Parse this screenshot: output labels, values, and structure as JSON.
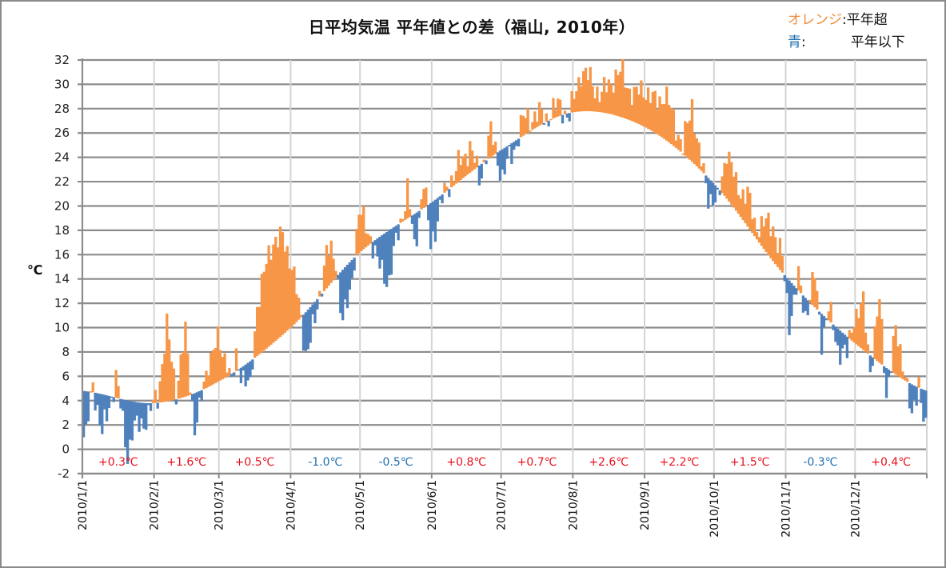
{
  "chart_data": {
    "type": "bar",
    "title": "日平均気温 平年値との差（福山, 2010年）",
    "ylabel": "℃",
    "xlabel": "",
    "ylim": [
      -2,
      32
    ],
    "y_ticks": [
      "32",
      "30",
      "28",
      "26",
      "24",
      "22",
      "20",
      "18",
      "16",
      "14",
      "12",
      "10",
      "8",
      "6",
      "4",
      "2",
      "0",
      "-2"
    ],
    "x_tick_labels": [
      "2010/1/1",
      "2010/2/1",
      "2010/3/1",
      "2010/4/1",
      "2010/5/1",
      "2010/6/1",
      "2010/7/1",
      "2010/8/1",
      "2010/9/1",
      "2010/10/1",
      "2010/11/1",
      "2010/12/1"
    ],
    "legend": {
      "placement": "top-right",
      "items": [
        {
          "key": "オレンジ",
          "sep": ":",
          "desc": "平年超",
          "color": "#f79646"
        },
        {
          "key": "青",
          "sep": ":",
          "desc": "平年以下",
          "color": "#4f81bd"
        }
      ]
    },
    "colors": {
      "above": "#f79646",
      "below": "#4f81bd",
      "anomaly_positive": "#e8101c",
      "anomaly_negative": "#1f6fb0"
    },
    "monthly_anomalies": [
      "+0.3℃",
      "+1.6℃",
      "+0.5℃",
      "-1.0℃",
      "-0.5℃",
      "+0.8℃",
      "+0.7℃",
      "+2.6℃",
      "+2.2℃",
      "+1.5℃",
      "-0.3℃",
      "+0.4℃"
    ],
    "normal_curve_monthly_start": [
      4.8,
      3.8,
      5.6,
      10.0,
      16.2,
      20.3,
      24.6,
      27.7,
      26.5,
      21.8,
      14.2,
      8.7,
      4.8
    ],
    "daily_deviation_events": [
      {
        "day": 1,
        "dev": -3.8
      },
      {
        "day": 4,
        "dev": 0.9
      },
      {
        "day": 8,
        "dev": -3.4
      },
      {
        "day": 14,
        "dev": 1.7
      },
      {
        "day": 19,
        "dev": -4.4
      },
      {
        "day": 21,
        "dev": -2.5
      },
      {
        "day": 28,
        "dev": -1.0
      },
      {
        "day": 32,
        "dev": 0.6
      },
      {
        "day": 36,
        "dev": 6.0
      },
      {
        "day": 40,
        "dev": 0.8
      },
      {
        "day": 44,
        "dev": 5.1
      },
      {
        "day": 48,
        "dev": -2.7
      },
      {
        "day": 50,
        "dev": -1.8
      },
      {
        "day": 54,
        "dev": 2.3
      },
      {
        "day": 58,
        "dev": 3.2
      },
      {
        "day": 62,
        "dev": 1.5
      },
      {
        "day": 64,
        "dev": -1.1
      },
      {
        "day": 66,
        "dev": 1.0
      },
      {
        "day": 72,
        "dev": -2.5
      },
      {
        "day": 75,
        "dev": 4.4
      },
      {
        "day": 78,
        "dev": 6.2
      },
      {
        "day": 82,
        "dev": 8.6
      },
      {
        "day": 86,
        "dev": 7.8
      },
      {
        "day": 90,
        "dev": 5.3
      },
      {
        "day": 96,
        "dev": -3.2
      },
      {
        "day": 100,
        "dev": -1.8
      },
      {
        "day": 105,
        "dev": 3.1
      },
      {
        "day": 109,
        "dev": 1.4
      },
      {
        "day": 112,
        "dev": -4.3
      },
      {
        "day": 115,
        "dev": -2.8
      },
      {
        "day": 119,
        "dev": 3.3
      },
      {
        "day": 124,
        "dev": 0.7
      },
      {
        "day": 127,
        "dev": -2.1
      },
      {
        "day": 132,
        "dev": -4.1
      },
      {
        "day": 136,
        "dev": -0.6
      },
      {
        "day": 140,
        "dev": 2.3
      },
      {
        "day": 143,
        "dev": -2.8
      },
      {
        "day": 147,
        "dev": 2.1
      },
      {
        "day": 150,
        "dev": -3.4
      },
      {
        "day": 155,
        "dev": -0.5
      },
      {
        "day": 159,
        "dev": 0.8
      },
      {
        "day": 164,
        "dev": 1.6
      },
      {
        "day": 167,
        "dev": 2.3
      },
      {
        "day": 171,
        "dev": -1.2
      },
      {
        "day": 176,
        "dev": 2.0
      },
      {
        "day": 181,
        "dev": -2.2
      },
      {
        "day": 186,
        "dev": -0.6
      },
      {
        "day": 190,
        "dev": 1.3
      },
      {
        "day": 195,
        "dev": 1.1
      },
      {
        "day": 200,
        "dev": 0.4
      },
      {
        "day": 206,
        "dev": 0.9
      },
      {
        "day": 210,
        "dev": -0.4
      },
      {
        "day": 215,
        "dev": 3.4
      },
      {
        "day": 219,
        "dev": 2.5
      },
      {
        "day": 224,
        "dev": 1.4
      },
      {
        "day": 229,
        "dev": 3.1
      },
      {
        "day": 233,
        "dev": 3.6
      },
      {
        "day": 238,
        "dev": 2.0
      },
      {
        "day": 242,
        "dev": 3.3
      },
      {
        "day": 246,
        "dev": 2.4
      },
      {
        "day": 251,
        "dev": 3.6
      },
      {
        "day": 255,
        "dev": 2.4
      },
      {
        "day": 259,
        "dev": 0.4
      },
      {
        "day": 263,
        "dev": 4.9
      },
      {
        "day": 266,
        "dev": 1.2
      },
      {
        "day": 270,
        "dev": -1.3
      },
      {
        "day": 274,
        "dev": -1.5
      },
      {
        "day": 278,
        "dev": 4.2
      },
      {
        "day": 282,
        "dev": 2.0
      },
      {
        "day": 287,
        "dev": 2.6
      },
      {
        "day": 290,
        "dev": 1.0
      },
      {
        "day": 294,
        "dev": 2.0
      },
      {
        "day": 298,
        "dev": 3.0
      },
      {
        "day": 302,
        "dev": 1.0
      },
      {
        "day": 305,
        "dev": -3.3
      },
      {
        "day": 309,
        "dev": 0.9
      },
      {
        "day": 312,
        "dev": -1.3
      },
      {
        "day": 316,
        "dev": 2.5
      },
      {
        "day": 319,
        "dev": -2.0
      },
      {
        "day": 322,
        "dev": 0.9
      },
      {
        "day": 326,
        "dev": -1.5
      },
      {
        "day": 330,
        "dev": -1.6
      },
      {
        "day": 333,
        "dev": 2.3
      },
      {
        "day": 337,
        "dev": 3.6
      },
      {
        "day": 340,
        "dev": -1.0
      },
      {
        "day": 344,
        "dev": 5.0
      },
      {
        "day": 347,
        "dev": -2.0
      },
      {
        "day": 351,
        "dev": 3.4
      },
      {
        "day": 355,
        "dev": 1.0
      },
      {
        "day": 358,
        "dev": -3.2
      },
      {
        "day": 361,
        "dev": 0.8
      },
      {
        "day": 364,
        "dev": -3.5
      }
    ]
  }
}
